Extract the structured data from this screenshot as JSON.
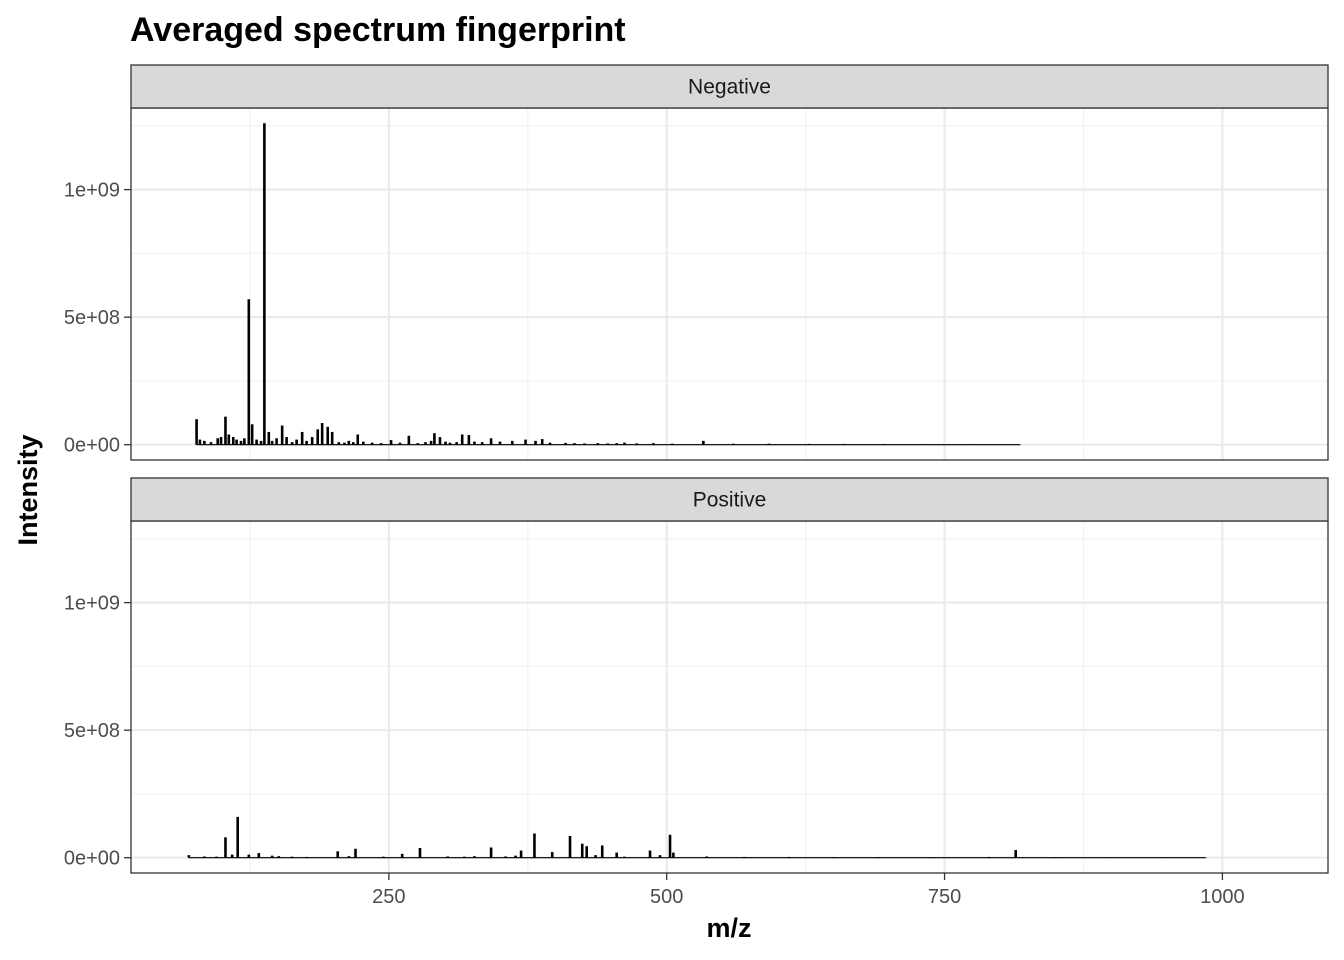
{
  "chart_data": {
    "type": "bar",
    "title": "Averaged spectrum fingerprint",
    "xlabel": "m/z",
    "ylabel": "Intensity",
    "xlim": [
      18,
      1095
    ],
    "ylim": [
      -60000000,
      1320000000
    ],
    "x_ticks": [
      250,
      500,
      750,
      1000
    ],
    "x_tick_labels": [
      "250",
      "500",
      "750",
      "1000"
    ],
    "y_ticks": [
      0,
      500000000,
      1000000000
    ],
    "y_tick_labels": [
      "0e+00",
      "5e+08",
      "1e+09"
    ],
    "grid": true,
    "legend": "none",
    "colors": {
      "bars": "#000000",
      "strip_bg": "#d9d9d9",
      "grid": "#ebebeb",
      "panel_border": "#333333"
    },
    "panels": [
      {
        "name": "Negative",
        "mz": [
          77,
          80,
          84,
          90,
          96,
          99,
          103,
          106,
          110,
          113,
          117,
          120,
          124,
          127,
          131,
          135,
          138,
          142,
          145,
          149,
          154,
          158,
          163,
          167,
          172,
          176,
          181,
          186,
          190,
          195,
          199,
          205,
          210,
          214,
          218,
          222,
          227,
          235,
          243,
          252,
          260,
          268,
          276,
          283,
          288,
          291,
          296,
          301,
          305,
          311,
          316,
          322,
          327,
          334,
          342,
          350,
          361,
          373,
          382,
          388,
          395,
          409,
          417,
          426,
          438,
          447,
          455,
          462,
          473,
          488,
          505,
          533,
          560,
          592,
          628,
          660,
          695,
          735,
          778,
          818
        ],
        "intensity": [
          100000000,
          20000000,
          15000000,
          10000000,
          25000000,
          30000000,
          110000000,
          40000000,
          30000000,
          20000000,
          15000000,
          25000000,
          570000000,
          80000000,
          20000000,
          15000000,
          1260000000,
          50000000,
          15000000,
          25000000,
          75000000,
          30000000,
          10000000,
          20000000,
          50000000,
          15000000,
          30000000,
          60000000,
          85000000,
          70000000,
          50000000,
          10000000,
          8000000,
          15000000,
          10000000,
          40000000,
          12000000,
          8000000,
          6000000,
          18000000,
          8000000,
          35000000,
          6000000,
          10000000,
          15000000,
          45000000,
          30000000,
          12000000,
          8000000,
          10000000,
          40000000,
          38000000,
          12000000,
          10000000,
          25000000,
          12000000,
          15000000,
          20000000,
          15000000,
          22000000,
          8000000,
          7000000,
          6000000,
          5000000,
          6000000,
          5000000,
          6000000,
          8000000,
          5000000,
          6000000,
          4000000,
          15000000,
          4000000,
          4000000,
          3000000,
          3000000,
          2000000,
          2000000,
          2000000,
          1000000
        ]
      },
      {
        "name": "Positive",
        "mz": [
          70,
          84,
          95,
          103,
          109,
          114,
          124,
          133,
          145,
          151,
          163,
          176,
          204,
          214,
          220,
          245,
          262,
          278,
          303,
          318,
          327,
          342,
          355,
          364,
          369,
          381,
          397,
          413,
          424,
          428,
          436,
          442,
          455,
          462,
          485,
          494,
          503,
          506,
          536,
          570,
          610,
          650,
          690,
          740,
          790,
          814,
          850,
          900,
          950,
          985
        ],
        "intensity": [
          10000000,
          5000000,
          4000000,
          80000000,
          12000000,
          160000000,
          12000000,
          18000000,
          8000000,
          6000000,
          4000000,
          3000000,
          25000000,
          6000000,
          35000000,
          4000000,
          15000000,
          38000000,
          5000000,
          4000000,
          6000000,
          40000000,
          5000000,
          8000000,
          28000000,
          95000000,
          22000000,
          85000000,
          55000000,
          45000000,
          10000000,
          48000000,
          20000000,
          4000000,
          28000000,
          10000000,
          90000000,
          20000000,
          5000000,
          3000000,
          3000000,
          2000000,
          2000000,
          2000000,
          3000000,
          30000000,
          2000000,
          1000000,
          1000000,
          1000000
        ]
      }
    ]
  }
}
